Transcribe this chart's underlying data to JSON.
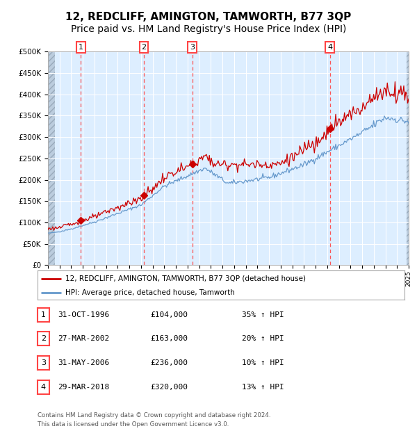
{
  "title": "12, REDCLIFF, AMINGTON, TAMWORTH, B77 3QP",
  "subtitle": "Price paid vs. HM Land Registry's House Price Index (HPI)",
  "x_start_year": 1994,
  "x_end_year": 2025,
  "y_min": 0,
  "y_max": 500000,
  "y_ticks": [
    0,
    50000,
    100000,
    150000,
    200000,
    250000,
    300000,
    350000,
    400000,
    450000,
    500000
  ],
  "y_tick_labels": [
    "£0",
    "£50K",
    "£100K",
    "£150K",
    "£200K",
    "£250K",
    "£300K",
    "£350K",
    "£400K",
    "£450K",
    "£500K"
  ],
  "hpi_color": "#6699cc",
  "price_color": "#cc0000",
  "plot_bg_color": "#ddeeff",
  "grid_color": "#ffffff",
  "dashed_line_color": "#ff4444",
  "sale_marker_color": "#cc0000",
  "sale_points": [
    {
      "date_decimal": 1996.83,
      "price": 104000,
      "label": "1",
      "date_str": "31-OCT-1996"
    },
    {
      "date_decimal": 2002.24,
      "price": 163000,
      "label": "2",
      "date_str": "27-MAR-2002"
    },
    {
      "date_decimal": 2006.41,
      "price": 236000,
      "label": "3",
      "date_str": "31-MAY-2006"
    },
    {
      "date_decimal": 2018.24,
      "price": 320000,
      "label": "4",
      "date_str": "29-MAR-2018"
    }
  ],
  "legend_line1": "12, REDCLIFF, AMINGTON, TAMWORTH, B77 3QP (detached house)",
  "legend_line2": "HPI: Average price, detached house, Tamworth",
  "table_rows": [
    {
      "num": "1",
      "date": "31-OCT-1996",
      "price": "£104,000",
      "hpi": "35% ↑ HPI"
    },
    {
      "num": "2",
      "date": "27-MAR-2002",
      "price": "£163,000",
      "hpi": "20% ↑ HPI"
    },
    {
      "num": "3",
      "date": "31-MAY-2006",
      "price": "£236,000",
      "hpi": "10% ↑ HPI"
    },
    {
      "num": "4",
      "date": "29-MAR-2018",
      "price": "£320,000",
      "hpi": "13% ↑ HPI"
    }
  ],
  "footer": "Contains HM Land Registry data © Crown copyright and database right 2024.\nThis data is licensed under the Open Government Licence v3.0.",
  "title_fontsize": 11,
  "subtitle_fontsize": 10
}
